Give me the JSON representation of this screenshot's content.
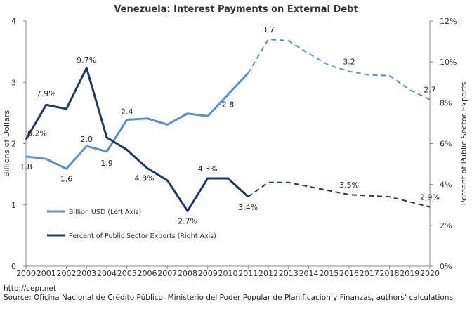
{
  "chart_data": {
    "type": "line",
    "title": "Venezuela: Interest Payments on External Debt",
    "categories": [
      "2000",
      "2001",
      "2002",
      "2003",
      "2004",
      "2005",
      "2006",
      "2007",
      "2008",
      "2009",
      "2010",
      "2011",
      "2012",
      "2013",
      "2014",
      "2015",
      "2016",
      "2017",
      "2018",
      "2019",
      "2020"
    ],
    "ylabel_left": "Billions of Dollars",
    "ylabel_right": "Percent of Public Sector Exports",
    "ylim_left": [
      0,
      4
    ],
    "ylim_right": [
      0,
      12
    ],
    "yticks_left": [
      "0",
      "1",
      "2",
      "3",
      "4"
    ],
    "yticks_right": [
      "0%",
      "2%",
      "4%",
      "6%",
      "8%",
      "10%",
      "12%"
    ],
    "projection_start_year": "2011",
    "series": [
      {
        "name": "Billion USD (Left Axis)",
        "axis": "left",
        "color": "#5a8fd0",
        "values": [
          1.79,
          1.75,
          1.59,
          1.96,
          1.87,
          2.39,
          2.41,
          2.31,
          2.49,
          2.45,
          2.8,
          3.15,
          3.7,
          3.68,
          3.47,
          3.28,
          3.18,
          3.12,
          3.11,
          2.88,
          2.72
        ],
        "labels": [
          {
            "i": 0,
            "text": "1.8"
          },
          {
            "i": 2,
            "text": "1.6"
          },
          {
            "i": 3,
            "text": "2.0"
          },
          {
            "i": 4,
            "text": "1.9"
          },
          {
            "i": 5,
            "text": "2.4"
          },
          {
            "i": 10,
            "text": "2.8"
          },
          {
            "i": 12,
            "text": "3.7"
          },
          {
            "i": 16,
            "text": "3.2"
          },
          {
            "i": 20,
            "text": "2.7"
          }
        ]
      },
      {
        "name": "Percent of Public Sector Exports (Right Axis)",
        "axis": "right",
        "color": "#1f3864",
        "values": [
          6.2,
          7.9,
          7.7,
          9.7,
          6.3,
          5.7,
          4.8,
          4.2,
          2.7,
          4.3,
          4.3,
          3.4,
          4.1,
          4.1,
          3.9,
          3.7,
          3.5,
          3.45,
          3.4,
          3.15,
          2.9
        ],
        "labels": [
          {
            "i": 0,
            "text": "6.2%"
          },
          {
            "i": 1,
            "text": "7.9%"
          },
          {
            "i": 3,
            "text": "9.7%"
          },
          {
            "i": 6,
            "text": "4.8%"
          },
          {
            "i": 8,
            "text": "2.7%"
          },
          {
            "i": 9,
            "text": "4.3%"
          },
          {
            "i": 11,
            "text": "3.4%"
          },
          {
            "i": 16,
            "text": "3.5%"
          },
          {
            "i": 20,
            "text": "2.9%"
          }
        ]
      }
    ]
  },
  "footer": {
    "url": "http://cepr.net",
    "source": "Source: Oficina Nacional de Crédito Público, Ministerio del Poder Popular de Planificación y Finanzas, authors’ calculations."
  }
}
